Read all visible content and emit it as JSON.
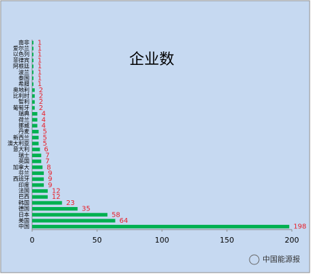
{
  "chart_data": {
    "type": "bar",
    "orientation": "horizontal",
    "title": "企业数",
    "categories": [
      "南非",
      "爱尔兰",
      "以色列",
      "菲律宾",
      "阿根廷",
      "波兰",
      "泰国",
      "希腊",
      "奥地利",
      "比利时",
      "智利",
      "葡萄牙",
      "瑞典",
      "荷兰",
      "挪威",
      "丹麦",
      "新西兰",
      "澳大利亚",
      "意大利",
      "瑞士",
      "英国",
      "加拿大",
      "芬兰",
      "西班牙",
      "印度",
      "法国",
      "巴西",
      "韩国",
      "德国",
      "日本",
      "美国",
      "中国"
    ],
    "values": [
      1,
      1,
      1,
      1,
      1,
      1,
      1,
      1,
      2,
      2,
      2,
      2,
      4,
      4,
      4,
      5,
      5,
      5,
      6,
      7,
      7,
      8,
      9,
      9,
      9,
      12,
      12,
      23,
      35,
      58,
      64,
      198
    ],
    "color": "#00b050",
    "label_color": "#e8202a",
    "xlim": [
      0,
      200
    ],
    "xticks": [
      0,
      50,
      100,
      150,
      200
    ],
    "grid": false,
    "watermark": "中国能源报"
  }
}
